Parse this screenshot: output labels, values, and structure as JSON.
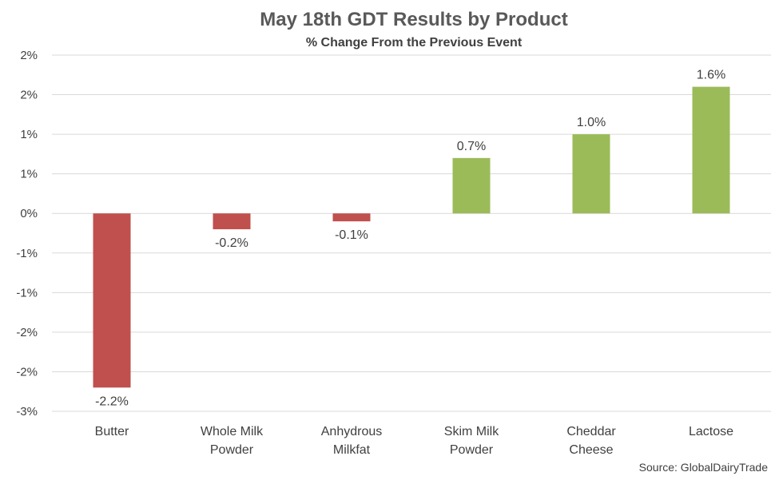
{
  "chart_data": {
    "type": "bar",
    "title": "May 18th GDT Results by Product",
    "subtitle": "% Change From the Previous Event",
    "categories": [
      [
        "Butter"
      ],
      [
        "Whole Milk",
        "Powder"
      ],
      [
        "Anhydrous",
        "Milkfat"
      ],
      [
        "Skim Milk",
        "Powder"
      ],
      [
        "Cheddar",
        "Cheese"
      ],
      [
        "Lactose"
      ]
    ],
    "values": [
      -2.2,
      -0.2,
      -0.1,
      0.7,
      1.0,
      1.6
    ],
    "data_labels": [
      "-2.2%",
      "-0.2%",
      "-0.1%",
      "0.7%",
      "1.0%",
      "1.6%"
    ],
    "ylim": [
      -2.5,
      2.0
    ],
    "y_tick_values": [
      2.0,
      1.5,
      1.0,
      0.5,
      0.0,
      -0.5,
      -1.0,
      -1.5,
      -2.0,
      -2.5
    ],
    "y_tick_labels": [
      "2%",
      "2%",
      "1%",
      "1%",
      "0%",
      "-1%",
      "-1%",
      "-2%",
      "-2%",
      "-3%"
    ],
    "grid": true,
    "legend": "none",
    "colors": {
      "negative": "#c0504d",
      "positive": "#9bbb59"
    },
    "source": "Source: GlobalDairyTrade"
  }
}
